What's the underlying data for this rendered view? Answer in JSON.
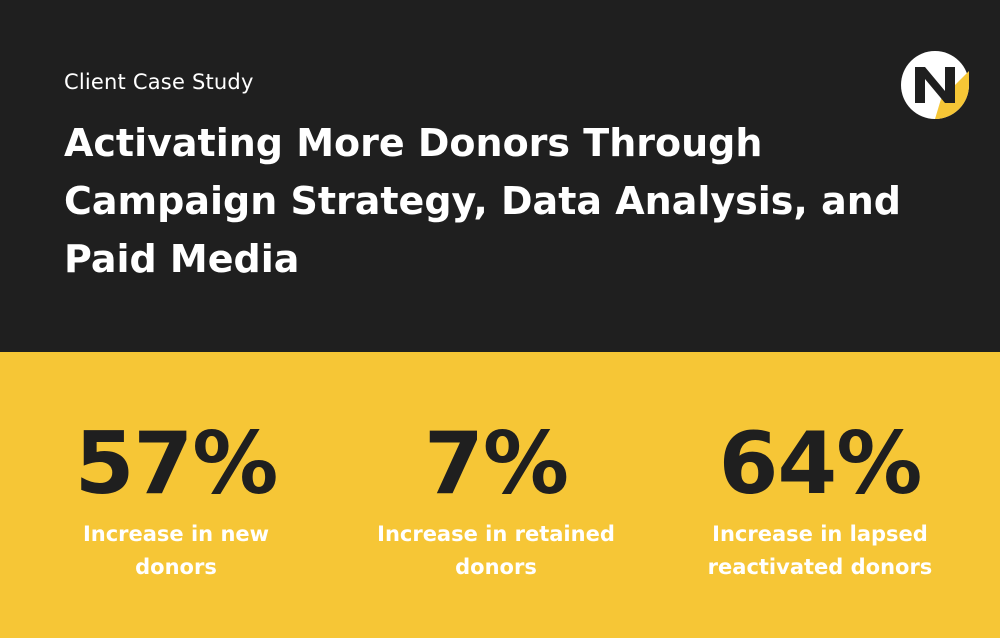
{
  "header": {
    "eyebrow": "Client Case Study",
    "title": "Activating More Donors Through Campaign Strategy, Data Analysis, and Paid Media",
    "logo_letter": "N",
    "logo_icon": "n-logo-icon",
    "background_color": "#1f1f1f"
  },
  "stats": {
    "background_color": "#f6c636",
    "items": [
      {
        "value": "57%",
        "label": "Increase in new donors"
      },
      {
        "value": "7%",
        "label": "Increase in retained donors"
      },
      {
        "value": "64%",
        "label": "Increase in lapsed reactivated donors"
      }
    ]
  }
}
